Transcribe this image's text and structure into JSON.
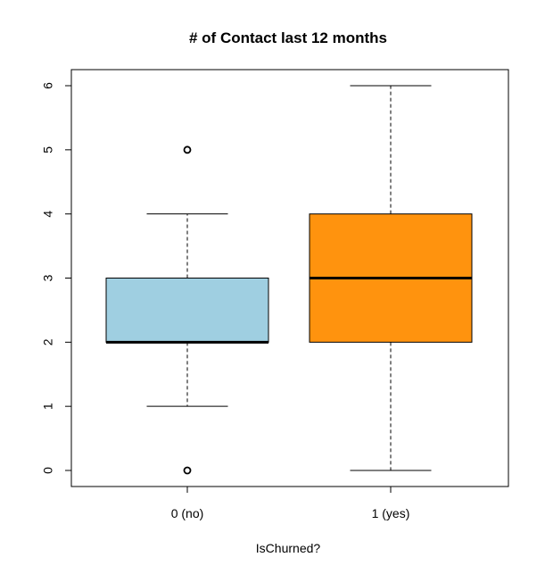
{
  "chart_data": {
    "type": "boxplot",
    "title": "# of Contact last 12 months",
    "xlabel": "IsChurned?",
    "ylabel": "",
    "categories": [
      "0 (no)",
      "1 (yes)"
    ],
    "ylim": [
      0,
      6
    ],
    "y_ticks": [
      0,
      1,
      2,
      3,
      4,
      5,
      6
    ],
    "grid": false,
    "boxes": [
      {
        "category": "0 (no)",
        "min": 1,
        "q1": 2,
        "median": 2,
        "q3": 3,
        "max": 4,
        "outliers": [
          0,
          5
        ],
        "color": "#9fcfe1"
      },
      {
        "category": "1 (yes)",
        "min": 0,
        "q1": 2,
        "median": 3,
        "q3": 4,
        "max": 6,
        "outliers": [],
        "color": "#ff930e"
      }
    ]
  }
}
